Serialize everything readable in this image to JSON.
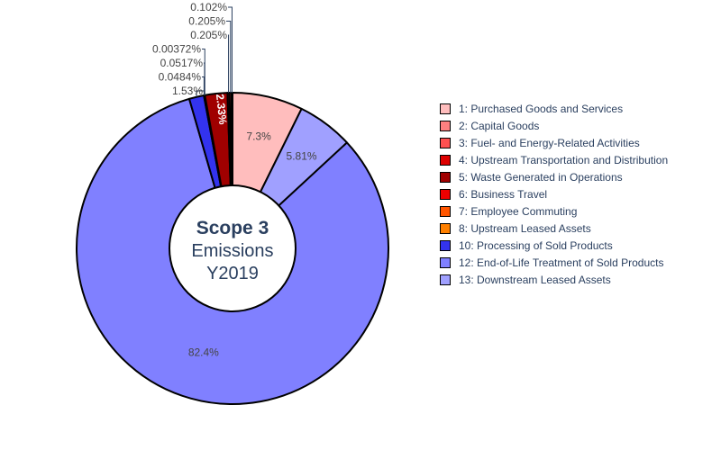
{
  "chart_data": {
    "type": "pie",
    "hole": true,
    "center_text": {
      "line1": "Scope 3",
      "line2": "Emissions",
      "line3": "Y2019"
    },
    "slices": [
      {
        "name": "1: Purchased Goods and Services",
        "value": 7.3,
        "label": "7.3%",
        "color": "#ffbdbd"
      },
      {
        "name": "13: Downstream Leased Assets",
        "value": 5.81,
        "label": "5.81%",
        "color": "#a0a0ff"
      },
      {
        "name": "12: End-of-Life Treatment of Sold Products",
        "value": 82.4,
        "label": "82.4%",
        "color": "#8080ff"
      },
      {
        "name": "10: Processing of Sold Products",
        "value": 1.53,
        "label": "1.53%",
        "color": "#3333ee"
      },
      {
        "name": "8: Upstream Leased Assets",
        "value": 0.0484,
        "label": "0.0484%",
        "color": "#ff8000"
      },
      {
        "name": "7: Employee Commuting",
        "value": 0.0517,
        "label": "0.0517%",
        "color": "#ff5500"
      },
      {
        "name": "6: Business Travel",
        "value": 0.00372,
        "label": "0.00372%",
        "color": "#ee0000"
      },
      {
        "name": "5: Waste Generated in Operations",
        "value": 2.33,
        "label": "2.33%",
        "color": "#a00000"
      },
      {
        "name": "4: Upstream Transportation and Distribution",
        "value": 0.205,
        "label": "0.205%",
        "color": "#dd0000"
      },
      {
        "name": "3: Fuel- and Energy-Related Activities",
        "value": 0.205,
        "label": "0.205%",
        "color": "#ff5050"
      },
      {
        "name": "2: Capital Goods",
        "value": 0.102,
        "label": "0.102%",
        "color": "#ff8080"
      }
    ],
    "legend": [
      {
        "label": "1: Purchased Goods and Services",
        "color": "#ffbdbd"
      },
      {
        "label": "2: Capital Goods",
        "color": "#ff8080"
      },
      {
        "label": "3: Fuel- and Energy-Related Activities",
        "color": "#ff5050"
      },
      {
        "label": "4: Upstream Transportation and Distribution",
        "color": "#dd0000"
      },
      {
        "label": "5: Waste Generated in Operations",
        "color": "#a00000"
      },
      {
        "label": "6: Business Travel",
        "color": "#ee0000"
      },
      {
        "label": "7: Employee Commuting",
        "color": "#ff5500"
      },
      {
        "label": "8: Upstream Leased Assets",
        "color": "#ff8000"
      },
      {
        "label": "10: Processing of Sold Products",
        "color": "#3333ee"
      },
      {
        "label": "12: End-of-Life Treatment of Sold Products",
        "color": "#8080ff"
      },
      {
        "label": "13: Downstream Leased Assets",
        "color": "#a0a0ff"
      }
    ]
  }
}
